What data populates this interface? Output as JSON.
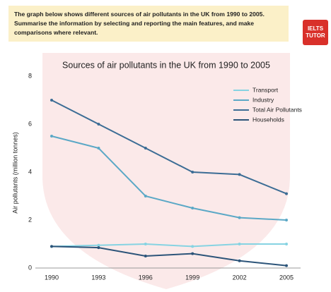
{
  "header": {
    "task": "The graph below shows different sources of air pollutants in the UK from 1990 to 2005. Summarise the information by selecting and reporting the main features, and make comparisons where relevant.",
    "logo": "IELTS TUTOR"
  },
  "chart_data": {
    "type": "line",
    "title": "Sources of air pollutants in the UK from 1990 to 2005",
    "y_label": "Air pollutants (million tonnes)",
    "categories": [
      "1990",
      "1993",
      "1996",
      "1999",
      "2002",
      "2005"
    ],
    "series": [
      {
        "name": "Transport",
        "color": "#86d3e2",
        "values": [
          0.9,
          0.95,
          1.0,
          0.9,
          1.0,
          1.0
        ]
      },
      {
        "name": "Industry",
        "color": "#5ba8c6",
        "values": [
          5.5,
          5.0,
          3.0,
          2.5,
          2.1,
          2.0
        ]
      },
      {
        "name": "Total Air Pollutants",
        "color": "#3c6d95",
        "values": [
          7.0,
          6.0,
          5.0,
          4.0,
          3.9,
          3.1
        ]
      },
      {
        "name": "Households",
        "color": "#2c5479",
        "values": [
          0.9,
          0.85,
          0.5,
          0.6,
          0.3,
          0.1
        ]
      }
    ],
    "ylim": [
      0,
      8
    ],
    "yticks": [
      0,
      2,
      4,
      6,
      8
    ],
    "grid": false,
    "legend": "upper right"
  }
}
